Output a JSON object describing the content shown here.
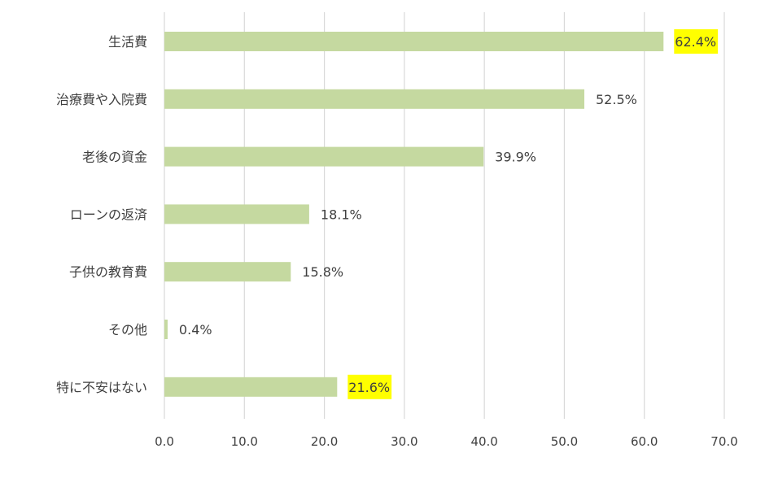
{
  "chart_data": {
    "type": "bar",
    "orientation": "horizontal",
    "title": "",
    "xlabel": "",
    "ylabel": "",
    "xlim": [
      0,
      70
    ],
    "x_ticks": [
      0,
      10,
      20,
      30,
      40,
      50,
      60,
      70
    ],
    "x_tick_labels": [
      "0.0",
      "10.0",
      "20.0",
      "30.0",
      "40.0",
      "50.0",
      "60.0",
      "70.0"
    ],
    "grid": "vertical",
    "categories": [
      "生活費",
      "治療費や入院費",
      "老後の資金",
      "ローンの返済",
      "子供の教育費",
      "その他",
      "特に不安はない"
    ],
    "values": [
      62.4,
      52.5,
      39.9,
      18.1,
      15.8,
      0.4,
      21.6
    ],
    "data_labels": [
      "62.4%",
      "52.5%",
      "39.9%",
      "18.1%",
      "15.8%",
      "0.4%",
      "21.6%"
    ],
    "highlighted_labels": [
      0,
      6
    ],
    "colors": {
      "bar": "#c5d9a0",
      "grid": "#d9d9d9",
      "highlight": "#ffff00",
      "text": "#404040"
    }
  }
}
